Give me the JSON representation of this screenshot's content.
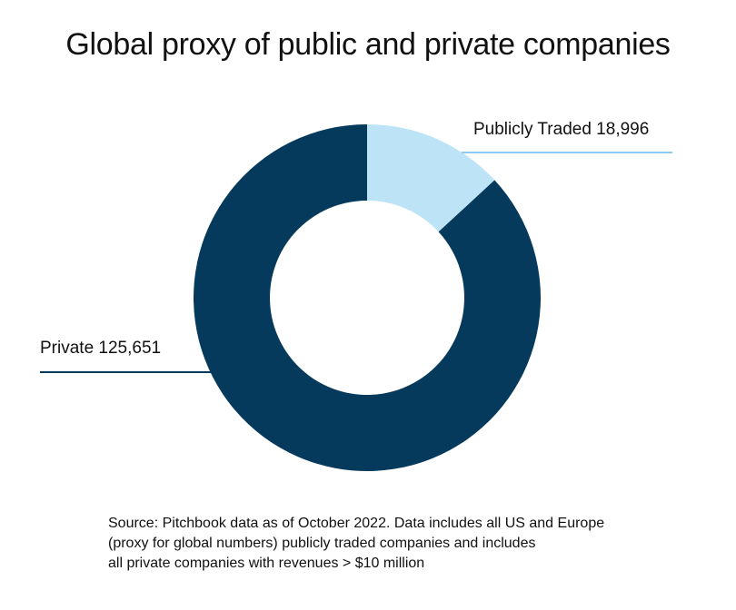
{
  "title": "Global proxy of public and private companies",
  "chart_data": {
    "type": "pie",
    "variant": "donut",
    "title": "Global proxy of public and private companies",
    "slices": [
      {
        "name": "Publicly Traded",
        "value": 18996,
        "label": "Publicly Traded 18,996",
        "color": "#bde3f6"
      },
      {
        "name": "Private",
        "value": 125651,
        "label": "Private 125,651",
        "color": "#063a5d"
      }
    ],
    "start_angle_deg": 0,
    "direction": "clockwise",
    "legend": "none"
  },
  "source_lines": [
    "Source: Pitchbook data as of October 2022. Data includes all US and Europe",
    "(proxy for global numbers) publicly traded companies and includes",
    "all private companies with revenues > $10 million"
  ]
}
